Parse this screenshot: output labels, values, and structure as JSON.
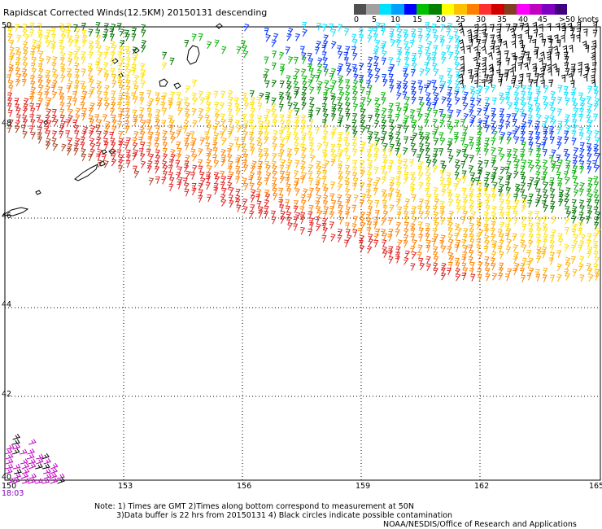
{
  "title": "Rapidscat Corrected Winds(12.5KM) 20150131 descending",
  "legend": {
    "labels": [
      "0",
      "5",
      "10",
      "15",
      "20",
      "25",
      "30",
      "35",
      "40",
      "45",
      ">50 knots"
    ],
    "colors": [
      "#505050",
      "#a0a0a0",
      "#00e0ff",
      "#00a0ff",
      "#0000ff",
      "#00c000",
      "#008000",
      "#ffff00",
      "#ffc000",
      "#ff8000",
      "#ff3030",
      "#d00000",
      "#804020",
      "#ff00ff",
      "#c000c0",
      "#8000c0",
      "#400080"
    ]
  },
  "axes": {
    "lon_labels": [
      "150",
      "153",
      "156",
      "159",
      "162",
      "165"
    ],
    "lat_labels": [
      "50",
      "48",
      "46",
      "44",
      "42",
      "40"
    ],
    "lon_range": [
      150,
      165
    ],
    "lat_range": [
      40,
      50
    ]
  },
  "time_label": "18:03",
  "notes": {
    "line1": "Note: 1) Times are GMT 2)Times along bottom correspond to measurement at 50N",
    "line2": "3)Data buffer is 22 hrs from 20150131 4) Black circles indicate possible contamination",
    "line3": "NOAA/NESDIS/Office of Research and Applications"
  },
  "wind_palette": {
    "black": "#000000",
    "cyan": "#00e0ff",
    "blue": "#0030ff",
    "green": "#00b000",
    "darkgreen": "#007000",
    "yellow": "#ffe000",
    "gold": "#ffb000",
    "orange": "#ff8000",
    "red": "#e02020",
    "brown": "#a04020",
    "magenta": "#c000c0"
  }
}
